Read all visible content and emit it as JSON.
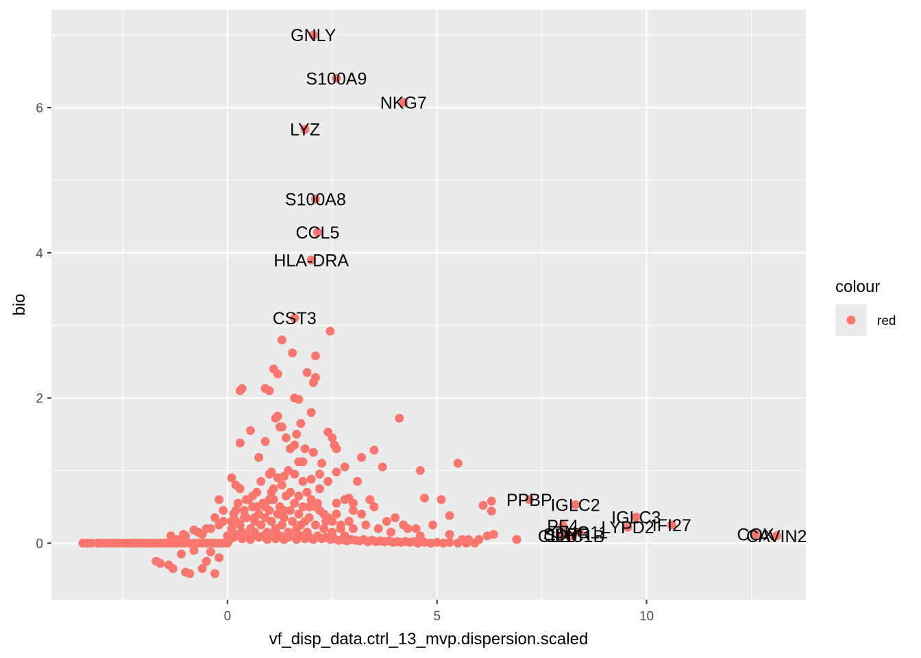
{
  "chart_data": {
    "type": "scatter",
    "xlabel": "vf_disp_data.ctrl_13_mvp.dispersion.scaled",
    "ylabel": "bio",
    "xlim": [
      -4.2,
      13.8
    ],
    "ylim": [
      -0.78,
      7.35
    ],
    "x_ticks": [
      0,
      5,
      10
    ],
    "y_ticks": [
      0,
      2,
      4,
      6
    ],
    "x_tick_labels": [
      "0",
      "5",
      "10"
    ],
    "y_tick_labels": [
      "0",
      "2",
      "4",
      "6"
    ],
    "grid": true,
    "point_color": "#F8766D",
    "panel_color": "#EBEBEB",
    "legend": {
      "title": "colour",
      "entries": [
        "red"
      ],
      "placement": "right"
    },
    "labeled_points": [
      {
        "label": "GNLY",
        "x": 2.05,
        "y": 7.0
      },
      {
        "label": "S100A9",
        "x": 2.6,
        "y": 6.4
      },
      {
        "label": "NKG7",
        "x": 4.2,
        "y": 6.07
      },
      {
        "label": "LYZ",
        "x": 1.85,
        "y": 5.7
      },
      {
        "label": "S100A8",
        "x": 2.1,
        "y": 4.74
      },
      {
        "label": "CCL5",
        "x": 2.15,
        "y": 4.28
      },
      {
        "label": "HLA-DRA",
        "x": 2.0,
        "y": 3.9
      },
      {
        "label": "CST3",
        "x": 1.6,
        "y": 3.1
      },
      {
        "label": "PPBP",
        "x": 7.2,
        "y": 0.6
      },
      {
        "label": "IGLC2",
        "x": 8.3,
        "y": 0.53
      },
      {
        "label": "IGLC3",
        "x": 9.75,
        "y": 0.36
      },
      {
        "label": "PF4",
        "x": 8.0,
        "y": 0.24
      },
      {
        "label": "LYPD2",
        "x": 9.55,
        "y": 0.22
      },
      {
        "label": "IFI27",
        "x": 10.6,
        "y": 0.25
      },
      {
        "label": "GNG11",
        "x": 8.4,
        "y": 0.15
      },
      {
        "label": "SDPR",
        "x": 8.1,
        "y": 0.12
      },
      {
        "label": "CLU",
        "x": 7.95,
        "y": 0.1
      },
      {
        "label": "CLEC1B",
        "x": 8.2,
        "y": 0.1
      },
      {
        "label": "COX",
        "x": 12.6,
        "y": 0.12
      },
      {
        "label": "CAVIN2",
        "x": 13.1,
        "y": 0.1
      }
    ],
    "points": [
      [
        -3.45,
        0
      ],
      [
        -3.35,
        0
      ],
      [
        -3.25,
        0
      ],
      [
        -3.1,
        0
      ],
      [
        -3.0,
        0
      ],
      [
        -2.9,
        0
      ],
      [
        -2.8,
        0
      ],
      [
        -2.7,
        0
      ],
      [
        -2.6,
        0
      ],
      [
        -2.5,
        0
      ],
      [
        -2.4,
        0
      ],
      [
        -2.3,
        0
      ],
      [
        -2.2,
        0
      ],
      [
        -2.1,
        0
      ],
      [
        -2.0,
        0
      ],
      [
        -1.9,
        0
      ],
      [
        -1.8,
        0
      ],
      [
        -1.7,
        0
      ],
      [
        -1.6,
        0
      ],
      [
        -1.5,
        0
      ],
      [
        -1.4,
        0
      ],
      [
        -1.3,
        0
      ],
      [
        -1.2,
        0
      ],
      [
        -1.1,
        0
      ],
      [
        -1.0,
        0
      ],
      [
        -0.9,
        0
      ],
      [
        -0.8,
        0
      ],
      [
        -0.7,
        0
      ],
      [
        -0.6,
        0
      ],
      [
        -0.5,
        0
      ],
      [
        -0.4,
        0
      ],
      [
        -0.3,
        0
      ],
      [
        -0.2,
        0
      ],
      [
        -0.1,
        0
      ],
      [
        0.0,
        0
      ],
      [
        -1.7,
        -0.25
      ],
      [
        -1.6,
        -0.28
      ],
      [
        -1.4,
        -0.3
      ],
      [
        -1.3,
        -0.35
      ],
      [
        -1.0,
        -0.4
      ],
      [
        -0.9,
        -0.42
      ],
      [
        -0.6,
        -0.35
      ],
      [
        -0.3,
        -0.42
      ],
      [
        -0.5,
        -0.25
      ],
      [
        -0.2,
        -0.2
      ],
      [
        -1.1,
        -0.15
      ],
      [
        -0.8,
        -0.1
      ],
      [
        -0.4,
        -0.12
      ],
      [
        -1.2,
        0.05
      ],
      [
        -1.0,
        0.1
      ],
      [
        -0.8,
        0.18
      ],
      [
        -0.6,
        0.12
      ],
      [
        -0.4,
        0.2
      ],
      [
        -0.2,
        0.25
      ],
      [
        -0.1,
        0.3
      ],
      [
        0.0,
        0.1
      ],
      [
        0.1,
        0.2
      ],
      [
        0.15,
        0.4
      ],
      [
        0.2,
        0.3
      ],
      [
        0.25,
        0.55
      ],
      [
        0.3,
        0.25
      ],
      [
        0.35,
        0.15
      ],
      [
        0.4,
        0.45
      ],
      [
        0.45,
        0.35
      ],
      [
        0.5,
        0.6
      ],
      [
        0.55,
        0.2
      ],
      [
        0.6,
        0.5
      ],
      [
        0.65,
        0.3
      ],
      [
        0.7,
        0.7
      ],
      [
        0.75,
        0.4
      ],
      [
        0.8,
        0.25
      ],
      [
        0.85,
        0.55
      ],
      [
        0.9,
        0.35
      ],
      [
        0.95,
        0.15
      ],
      [
        1.0,
        0.45
      ],
      [
        1.05,
        0.3
      ],
      [
        1.1,
        0.6
      ],
      [
        1.15,
        0.2
      ],
      [
        1.2,
        0.4
      ],
      [
        1.25,
        0.5
      ],
      [
        1.3,
        0.25
      ],
      [
        1.35,
        0.35
      ],
      [
        1.4,
        0.65
      ],
      [
        1.45,
        0.15
      ],
      [
        1.5,
        0.45
      ],
      [
        1.55,
        0.3
      ],
      [
        1.6,
        0.55
      ],
      [
        1.65,
        0.2
      ],
      [
        1.7,
        0.4
      ],
      [
        1.75,
        0.25
      ],
      [
        1.8,
        0.5
      ],
      [
        1.85,
        0.3
      ],
      [
        1.9,
        0.15
      ],
      [
        1.95,
        0.35
      ],
      [
        2.0,
        0.6
      ],
      [
        2.1,
        0.25
      ],
      [
        2.2,
        0.45
      ],
      [
        2.3,
        0.2
      ],
      [
        2.4,
        0.35
      ],
      [
        2.5,
        0.15
      ],
      [
        2.6,
        0.4
      ],
      [
        2.7,
        0.25
      ],
      [
        2.8,
        0.1
      ],
      [
        2.9,
        0.3
      ],
      [
        3.0,
        0.2
      ],
      [
        0.05,
        0.05
      ],
      [
        0.15,
        0.08
      ],
      [
        0.25,
        0.12
      ],
      [
        0.35,
        0.06
      ],
      [
        0.45,
        0.1
      ],
      [
        0.55,
        0.05
      ],
      [
        0.65,
        0.15
      ],
      [
        0.75,
        0.08
      ],
      [
        0.85,
        0.1
      ],
      [
        0.95,
        0.05
      ],
      [
        1.05,
        0.12
      ],
      [
        1.15,
        0.06
      ],
      [
        1.25,
        0.1
      ],
      [
        1.35,
        0.05
      ],
      [
        1.45,
        0.08
      ],
      [
        1.55,
        0.12
      ],
      [
        1.65,
        0.05
      ],
      [
        1.75,
        0.1
      ],
      [
        1.85,
        0.06
      ],
      [
        1.95,
        0.08
      ],
      [
        2.05,
        0.05
      ],
      [
        2.15,
        0.1
      ],
      [
        2.25,
        0.06
      ],
      [
        2.35,
        0.08
      ],
      [
        2.45,
        0.05
      ],
      [
        2.55,
        0.06
      ],
      [
        2.65,
        0.04
      ],
      [
        2.75,
        0.05
      ],
      [
        2.85,
        0.03
      ],
      [
        2.95,
        0.05
      ],
      [
        3.05,
        0.04
      ],
      [
        3.15,
        0.03
      ],
      [
        3.25,
        0.05
      ],
      [
        3.35,
        0.02
      ],
      [
        3.45,
        0.04
      ],
      [
        3.55,
        0.02
      ],
      [
        3.65,
        0.03
      ],
      [
        3.75,
        0.02
      ],
      [
        3.85,
        0.03
      ],
      [
        3.95,
        0.01
      ],
      [
        4.05,
        0.02
      ],
      [
        4.15,
        0.01
      ],
      [
        4.25,
        0.02
      ],
      [
        4.35,
        0.01
      ],
      [
        4.45,
        0.02
      ],
      [
        4.55,
        0.0
      ],
      [
        4.7,
        0.01
      ],
      [
        4.85,
        0.0
      ],
      [
        5.0,
        0.01
      ],
      [
        5.15,
        0.0
      ],
      [
        5.3,
        0.01
      ],
      [
        5.5,
        0.0
      ],
      [
        5.7,
        0.0
      ],
      [
        5.9,
        0.0
      ],
      [
        0.1,
        0.9
      ],
      [
        0.2,
        0.8
      ],
      [
        0.3,
        0.75
      ],
      [
        0.6,
        0.65
      ],
      [
        -0.2,
        0.6
      ],
      [
        0.8,
        0.85
      ],
      [
        1.0,
        0.95
      ],
      [
        1.1,
        0.75
      ],
      [
        0.4,
        0.35
      ],
      [
        0.9,
        0.5
      ],
      [
        1.2,
        0.9
      ],
      [
        1.3,
        0.8
      ],
      [
        1.5,
        0.7
      ],
      [
        1.6,
        0.95
      ],
      [
        1.7,
        0.65
      ],
      [
        1.8,
        0.85
      ],
      [
        1.9,
        0.7
      ],
      [
        2.2,
        0.75
      ],
      [
        2.4,
        0.85
      ],
      [
        2.6,
        0.55
      ],
      [
        2.8,
        0.6
      ],
      [
        3.0,
        0.45
      ],
      [
        3.2,
        0.4
      ],
      [
        3.5,
        0.5
      ],
      [
        3.8,
        0.3
      ],
      [
        4.0,
        0.35
      ],
      [
        4.2,
        0.25
      ],
      [
        4.5,
        0.2
      ],
      [
        2.1,
        0.5
      ],
      [
        2.3,
        0.4
      ],
      [
        2.5,
        0.3
      ],
      [
        2.7,
        0.2
      ],
      [
        3.3,
        0.25
      ],
      [
        3.6,
        0.2
      ],
      [
        3.9,
        0.15
      ],
      [
        4.3,
        0.2
      ],
      [
        4.6,
        0.1
      ],
      [
        0.3,
        2.1
      ],
      [
        0.35,
        2.13
      ],
      [
        0.55,
        1.55
      ],
      [
        0.9,
        1.4
      ],
      [
        1.0,
        2.1
      ],
      [
        0.9,
        2.13
      ],
      [
        1.15,
        1.72
      ],
      [
        1.2,
        1.75
      ],
      [
        1.25,
        1.6
      ],
      [
        1.3,
        1.6
      ],
      [
        1.4,
        1.45
      ],
      [
        1.5,
        1.3
      ],
      [
        1.6,
        2.0
      ],
      [
        1.7,
        1.98
      ],
      [
        1.75,
        1.65
      ],
      [
        1.65,
        1.5
      ],
      [
        1.85,
        1.3
      ],
      [
        2.0,
        1.8
      ],
      [
        2.05,
        1.25
      ],
      [
        1.8,
        1.12
      ],
      [
        1.9,
        2.35
      ],
      [
        2.1,
        2.28
      ],
      [
        2.05,
        2.21
      ],
      [
        2.1,
        2.58
      ],
      [
        1.55,
        2.62
      ],
      [
        1.1,
        2.4
      ],
      [
        1.2,
        2.33
      ],
      [
        1.3,
        2.8
      ],
      [
        2.45,
        2.92
      ],
      [
        2.4,
        1.53
      ],
      [
        2.5,
        1.45
      ],
      [
        2.55,
        1.35
      ],
      [
        2.6,
        1.3
      ],
      [
        2.25,
        1.1
      ],
      [
        0.3,
        1.38
      ],
      [
        0.75,
        1.18
      ],
      [
        1.05,
        0.98
      ],
      [
        1.35,
        0.92
      ],
      [
        1.45,
        1.0
      ],
      [
        1.6,
        1.35
      ],
      [
        1.7,
        1.12
      ],
      [
        2.0,
        0.88
      ],
      [
        2.2,
        0.95
      ],
      [
        2.6,
        0.98
      ],
      [
        2.8,
        1.05
      ],
      [
        3.1,
        0.85
      ],
      [
        3.2,
        1.18
      ],
      [
        3.5,
        1.28
      ],
      [
        3.7,
        1.05
      ],
      [
        4.1,
        1.72
      ],
      [
        4.6,
        1.0
      ],
      [
        4.7,
        0.62
      ],
      [
        5.1,
        0.6
      ],
      [
        5.5,
        1.1
      ],
      [
        5.3,
        0.38
      ],
      [
        4.9,
        0.25
      ],
      [
        6.1,
        0.52
      ],
      [
        6.3,
        0.44
      ],
      [
        6.3,
        0.58
      ],
      [
        6.2,
        0.1
      ],
      [
        6.35,
        0.12
      ],
      [
        6.9,
        0.05
      ],
      [
        5.3,
        0.12
      ],
      [
        5.6,
        0.05
      ],
      [
        5.75,
        0.05
      ],
      [
        6.0,
        0.05
      ],
      [
        3.0,
        0.55
      ],
      [
        3.4,
        0.6
      ],
      [
        2.9,
        0.62
      ],
      [
        1.95,
        0.5
      ],
      [
        2.15,
        0.55
      ],
      [
        2.35,
        0.3
      ],
      [
        1.0,
        0.6
      ],
      [
        1.05,
        0.7
      ],
      [
        1.35,
        0.45
      ],
      [
        0.7,
        0.5
      ],
      [
        0.65,
        0.35
      ],
      [
        0.45,
        0.6
      ],
      [
        0.2,
        0.45
      ],
      [
        0.1,
        0.3
      ],
      [
        -0.1,
        0.45
      ],
      [
        -0.3,
        0.35
      ],
      [
        -0.5,
        0.2
      ],
      [
        -0.7,
        0.15
      ],
      [
        -1.05,
        0.12
      ],
      [
        -1.35,
        0.1
      ],
      [
        2.05,
        7.0
      ],
      [
        2.6,
        6.4
      ],
      [
        4.2,
        6.07
      ],
      [
        1.85,
        5.7
      ],
      [
        2.1,
        4.74
      ],
      [
        2.15,
        4.28
      ],
      [
        2.0,
        3.9
      ],
      [
        1.6,
        3.1
      ],
      [
        7.2,
        0.6
      ],
      [
        8.3,
        0.53
      ],
      [
        9.75,
        0.36
      ],
      [
        8.0,
        0.24
      ],
      [
        9.55,
        0.22
      ],
      [
        10.6,
        0.25
      ],
      [
        8.4,
        0.15
      ],
      [
        8.1,
        0.12
      ],
      [
        7.95,
        0.1
      ],
      [
        8.2,
        0.1
      ],
      [
        12.6,
        0.12
      ],
      [
        13.1,
        0.1
      ]
    ]
  }
}
